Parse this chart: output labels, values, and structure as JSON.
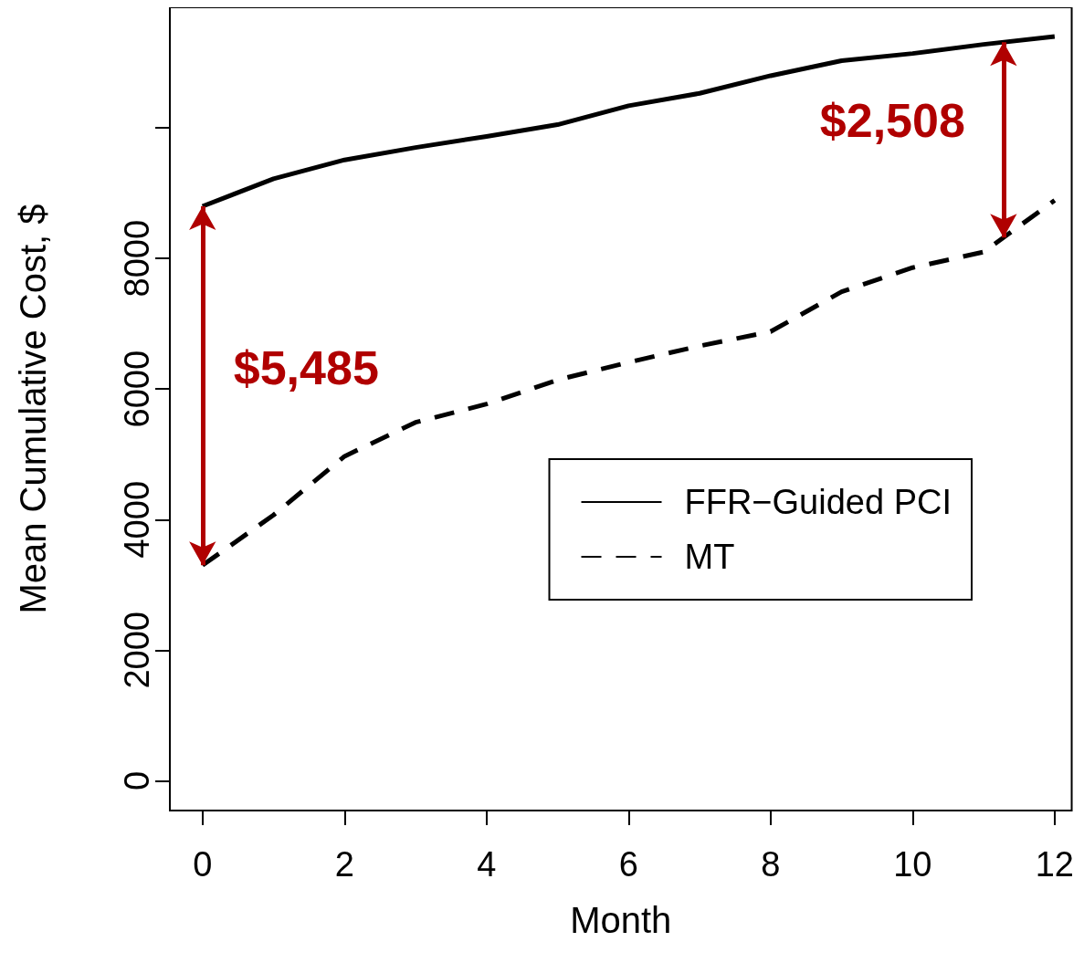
{
  "chart_data": {
    "type": "line",
    "xlabel": "Month",
    "ylabel": "Mean Cumulative Cost, $",
    "x": [
      0,
      1,
      2,
      3,
      4,
      5,
      6,
      7,
      8,
      9,
      10,
      11,
      12
    ],
    "series": [
      {
        "name": "FFR−Guided PCI",
        "color": "#000000",
        "line_style": "solid",
        "values": [
          8800,
          9220,
          9510,
          9700,
          9870,
          10050,
          10340,
          10530,
          10800,
          11030,
          11140,
          11280,
          11400
        ]
      },
      {
        "name": "MT",
        "color": "#000000",
        "line_style": "dashed",
        "values": [
          3300,
          4070,
          4970,
          5490,
          5770,
          6140,
          6410,
          6660,
          6880,
          7490,
          7860,
          8100,
          8890
        ]
      }
    ],
    "xlim": [
      -0.46,
      12.24
    ],
    "xticks": [
      0,
      2,
      4,
      6,
      8,
      10,
      12
    ],
    "ylim": [
      -457,
      11848
    ],
    "yticks": [
      0,
      2000,
      4000,
      6000,
      8000,
      {
        "value": 10000,
        "label": null
      }
    ],
    "legend": "center right",
    "marker": "none",
    "grid": false,
    "annotations": [
      "$5,485",
      "$2,508"
    ]
  }
}
